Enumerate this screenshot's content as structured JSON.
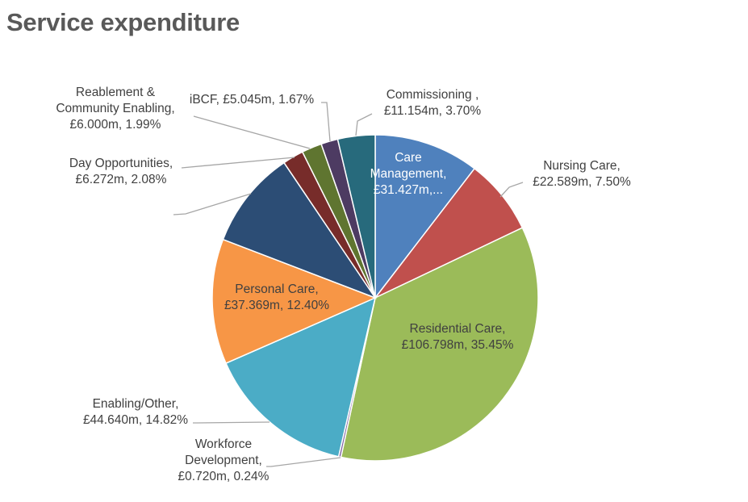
{
  "page": {
    "title": "Service expenditure"
  },
  "chart_data": {
    "type": "pie",
    "title": "Service expenditure",
    "slices": [
      {
        "name": "Care Management",
        "value": 31.427,
        "percent": 10.43,
        "color": "#4F81BD",
        "label_lines": [
          "Care",
          "Management,",
          "£31.427m,..."
        ],
        "label_inside": true,
        "text_color": "#ffffff"
      },
      {
        "name": "Nursing Care",
        "value": 22.589,
        "percent": 7.5,
        "color": "#C0504D",
        "label_lines": [
          "Nursing Care,",
          "£22.589m, 7.50%"
        ],
        "label_inside": false
      },
      {
        "name": "Residential Care",
        "value": 106.798,
        "percent": 35.45,
        "color": "#9BBB59",
        "label_lines": [
          "Residential Care,",
          "£106.798m, 35.45%"
        ],
        "label_inside": true,
        "text_color": "#404040"
      },
      {
        "name": "Workforce Development",
        "value": 0.72,
        "percent": 0.24,
        "color": "#8064A2",
        "label_lines": [
          "Workforce",
          "Development,",
          "£0.720m, 0.24%"
        ],
        "label_inside": false
      },
      {
        "name": "Enabling/Other",
        "value": 44.64,
        "percent": 14.82,
        "color": "#4BACC6",
        "label_lines": [
          "Enabling/Other,",
          "£44.640m, 14.82%"
        ],
        "label_inside": false
      },
      {
        "name": "Personal Care",
        "value": 37.369,
        "percent": 12.4,
        "color": "#F79646",
        "label_lines": [
          "Personal Care,",
          "£37.369m, 12.40%"
        ],
        "label_inside": true,
        "text_color": "#404040"
      },
      {
        "name": "",
        "value": 29.3,
        "percent": 9.73,
        "color": "#2C4D75",
        "label_lines": [],
        "label_inside": false
      },
      {
        "name": "Day Opportunities",
        "value": 6.272,
        "percent": 2.08,
        "color": "#772C2A",
        "label_lines": [
          "Day Opportunities,",
          "£6.272m, 2.08%"
        ],
        "label_inside": false
      },
      {
        "name": "Reablement & Community Enabling",
        "value": 6.0,
        "percent": 1.99,
        "color": "#5F7530",
        "label_lines": [
          "Reablement  &",
          "Community Enabling,",
          "£6.000m, 1.99%"
        ],
        "label_inside": false
      },
      {
        "name": "iBCF",
        "value": 5.045,
        "percent": 1.67,
        "color": "#4D3B62",
        "label_lines": [
          "iBCF, £5.045m, 1.67%"
        ],
        "label_inside": false
      },
      {
        "name": "Commissioning",
        "value": 11.154,
        "percent": 3.7,
        "color": "#276A7C",
        "label_lines": [
          "Commissioning ,",
          "£11.154m, 3.70%"
        ],
        "label_inside": false
      }
    ],
    "legend": "none"
  }
}
